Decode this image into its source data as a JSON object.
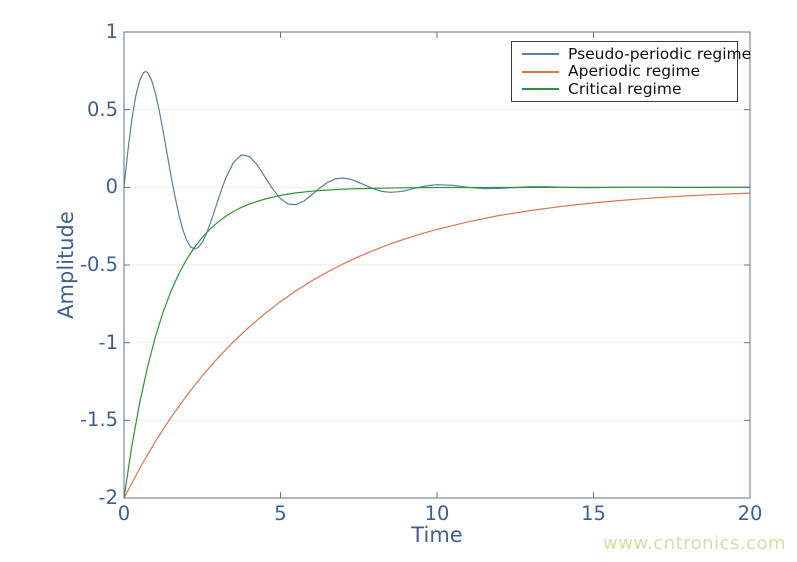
{
  "watermark": {
    "text": "www.cntronics.com",
    "color": "#cde3a0"
  },
  "chart_data": {
    "type": "line",
    "title": "",
    "xlabel": "Time",
    "ylabel": "Amplitude",
    "xlim": [
      0,
      20
    ],
    "ylim": [
      -2,
      1
    ],
    "xticks": [
      0,
      5,
      10,
      15,
      20
    ],
    "yticks": [
      1,
      0.5,
      0,
      -0.5,
      -1,
      -1.5,
      -2
    ],
    "xtick_labels": [
      "0",
      "5",
      "10",
      "15",
      "20"
    ],
    "ytick_labels": [
      "1",
      "0.5",
      "0",
      "-0.5",
      "-1",
      "-1.5",
      "-2"
    ],
    "grid": "horizontal-only",
    "grid_color": "#eeeeee",
    "axis_color": "#5f7590",
    "tick_label_color": "#3e608e",
    "legend": {
      "position": "top-right",
      "border_color": "#3b3b3b"
    },
    "series": [
      {
        "name": "Pseudo-periodic regime",
        "color": "#5b7da2",
        "points": [
          [
            0,
            0
          ],
          [
            0.125,
            0.235
          ],
          [
            0.25,
            0.434
          ],
          [
            0.375,
            0.587
          ],
          [
            0.5,
            0.689
          ],
          [
            0.625,
            0.739
          ],
          [
            0.6875,
            0.745
          ],
          [
            0.75,
            0.739
          ],
          [
            0.875,
            0.693
          ],
          [
            1,
            0.609
          ],
          [
            1.125,
            0.496
          ],
          [
            1.25,
            0.363
          ],
          [
            1.375,
            0.22
          ],
          [
            1.5,
            0.077
          ],
          [
            1.625,
            -0.056
          ],
          [
            1.75,
            -0.174
          ],
          [
            1.875,
            -0.27
          ],
          [
            2,
            -0.34
          ],
          [
            2.125,
            -0.383
          ],
          [
            2.25,
            -0.397
          ],
          [
            2.375,
            -0.387
          ],
          [
            2.5,
            -0.353
          ],
          [
            2.625,
            -0.301
          ],
          [
            2.75,
            -0.235
          ],
          [
            2.875,
            -0.161
          ],
          [
            3,
            -0.084
          ],
          [
            3.125,
            -0.01
          ],
          [
            3.25,
            0.059
          ],
          [
            3.5,
            0.162
          ],
          [
            3.75,
            0.209
          ],
          [
            4,
            0.2
          ],
          [
            4.25,
            0.146
          ],
          [
            4.5,
            0.068
          ],
          [
            4.75,
            -0.011
          ],
          [
            5,
            -0.074
          ],
          [
            5.25,
            -0.108
          ],
          [
            5.5,
            -0.111
          ],
          [
            5.75,
            -0.088
          ],
          [
            6,
            -0.049
          ],
          [
            6.25,
            -0.005
          ],
          [
            6.5,
            0.031
          ],
          [
            6.75,
            0.054
          ],
          [
            7,
            0.06
          ],
          [
            7.25,
            0.051
          ],
          [
            7.5,
            0.032
          ],
          [
            7.75,
            0.01
          ],
          [
            8,
            -0.012
          ],
          [
            8.25,
            -0.026
          ],
          [
            8.5,
            -0.032
          ],
          [
            8.75,
            -0.029
          ],
          [
            9,
            -0.021
          ],
          [
            9.25,
            -0.008
          ],
          [
            9.5,
            0.003
          ],
          [
            9.75,
            0.012
          ],
          [
            10,
            0.017
          ],
          [
            10.5,
            0.013
          ],
          [
            11,
            0
          ],
          [
            11.5,
            -0.009
          ],
          [
            12,
            -0.007
          ],
          [
            12.5,
            -0.001
          ],
          [
            13,
            0.004
          ],
          [
            13.5,
            0.004
          ],
          [
            14,
            0.001
          ],
          [
            14.5,
            -0.002
          ],
          [
            15,
            -0.002
          ],
          [
            16,
            0.001
          ],
          [
            17,
            0.001
          ],
          [
            18,
            -0.001
          ],
          [
            19,
            0
          ],
          [
            20,
            0
          ]
        ]
      },
      {
        "name": "Aperiodic regime",
        "color": "#d97650",
        "points": [
          [
            0,
            -2
          ],
          [
            0.5,
            -1.81
          ],
          [
            1,
            -1.637
          ],
          [
            1.5,
            -1.482
          ],
          [
            2,
            -1.341
          ],
          [
            2.5,
            -1.213
          ],
          [
            3,
            -1.098
          ],
          [
            3.5,
            -0.993
          ],
          [
            4,
            -0.899
          ],
          [
            4.5,
            -0.813
          ],
          [
            5,
            -0.736
          ],
          [
            5.5,
            -0.666
          ],
          [
            6,
            -0.602
          ],
          [
            6.5,
            -0.545
          ],
          [
            7,
            -0.493
          ],
          [
            7.5,
            -0.446
          ],
          [
            8,
            -0.404
          ],
          [
            8.5,
            -0.365
          ],
          [
            9,
            -0.331
          ],
          [
            9.5,
            -0.299
          ],
          [
            10,
            -0.271
          ],
          [
            11,
            -0.222
          ],
          [
            12,
            -0.181
          ],
          [
            13,
            -0.149
          ],
          [
            14,
            -0.122
          ],
          [
            15,
            -0.1
          ],
          [
            16,
            -0.082
          ],
          [
            17,
            -0.067
          ],
          [
            18,
            -0.055
          ],
          [
            19,
            -0.045
          ],
          [
            20,
            -0.037
          ]
        ]
      },
      {
        "name": "Critical regime",
        "color": "#2f9233",
        "points": [
          [
            0,
            -2
          ],
          [
            0.25,
            -1.666
          ],
          [
            0.5,
            -1.388
          ],
          [
            0.75,
            -1.157
          ],
          [
            1,
            -0.964
          ],
          [
            1.25,
            -0.803
          ],
          [
            1.5,
            -0.669
          ],
          [
            1.75,
            -0.557
          ],
          [
            2,
            -0.464
          ],
          [
            2.25,
            -0.387
          ],
          [
            2.5,
            -0.322
          ],
          [
            2.75,
            -0.269
          ],
          [
            3,
            -0.224
          ],
          [
            3.25,
            -0.187
          ],
          [
            3.5,
            -0.155
          ],
          [
            3.75,
            -0.129
          ],
          [
            4,
            -0.108
          ],
          [
            4.5,
            -0.075
          ],
          [
            5,
            -0.052
          ],
          [
            5.5,
            -0.036
          ],
          [
            6,
            -0.025
          ],
          [
            6.5,
            -0.017
          ],
          [
            7,
            -0.012
          ],
          [
            7.5,
            -0.008
          ],
          [
            8,
            -0.006
          ],
          [
            9,
            -0.003
          ],
          [
            10,
            -0.001
          ],
          [
            12,
            -0.001
          ],
          [
            14,
            0
          ],
          [
            16,
            0
          ],
          [
            18,
            0
          ],
          [
            20,
            0
          ]
        ]
      }
    ]
  }
}
